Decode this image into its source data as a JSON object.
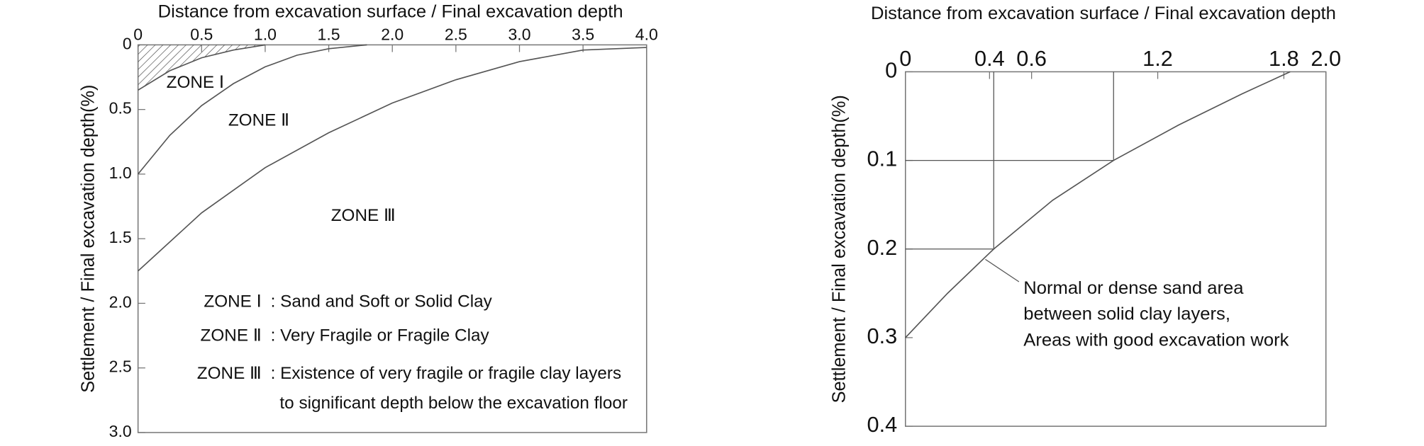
{
  "chart_data": [
    {
      "type": "line",
      "xlabel": "Distance from excavation surface / Final excavation depth",
      "ylabel": "Settlement / Final excavation depth(%)",
      "x_axis_position": "top",
      "y_inverted": true,
      "xlim": [
        0,
        4
      ],
      "xticks": [
        0,
        0.5,
        {
          "value": 1,
          "label": "1.0"
        },
        1.5,
        {
          "value": 2,
          "label": "2.0"
        },
        2.5,
        {
          "value": 3,
          "label": "3.0"
        },
        3.5,
        {
          "value": 4,
          "label": "4.0"
        }
      ],
      "ylim": [
        0,
        3
      ],
      "yticks": [
        0,
        0.5,
        {
          "value": 1,
          "label": "1.0"
        },
        1.5,
        {
          "value": 2,
          "label": "2.0"
        },
        2.5,
        {
          "value": 3,
          "label": "3.0"
        }
      ],
      "series": [
        {
          "color": "#555555",
          "hatched": true,
          "x": [
            0,
            0.25,
            0.5,
            0.75,
            1.0
          ],
          "values": [
            0.35,
            0.2,
            0.1,
            0.04,
            0
          ]
        },
        {
          "color": "#555555",
          "x": [
            0,
            0.25,
            0.5,
            0.75,
            1.0,
            1.25,
            1.5,
            1.8
          ],
          "values": [
            1.0,
            0.7,
            0.47,
            0.3,
            0.17,
            0.08,
            0.03,
            0
          ]
        },
        {
          "color": "#555555",
          "x": [
            0,
            0.5,
            1.0,
            1.5,
            2.0,
            2.5,
            3.0,
            3.5,
            4.0
          ],
          "values": [
            1.75,
            1.3,
            0.95,
            0.68,
            0.45,
            0.27,
            0.13,
            0.04,
            0.02
          ]
        }
      ],
      "zone_labels": [
        "ZONE Ⅰ",
        "ZONE Ⅱ",
        "ZONE Ⅲ"
      ],
      "legend_notes": [
        {
          "zone": "ZONE Ⅰ",
          "text": [
            ": Sand and Soft or Solid Clay"
          ]
        },
        {
          "zone": "ZONE Ⅱ",
          "text": [
            ": Very Fragile or Fragile Clay"
          ]
        },
        {
          "zone": "ZONE Ⅲ",
          "text": [
            ": Existence of very fragile or fragile clay layers",
            "to significant depth below the excavation floor"
          ]
        }
      ]
    },
    {
      "type": "line",
      "xlabel": "Distance from excavation surface / Final excavation depth",
      "ylabel": "Settlement / Final excavation depth(%)",
      "x_axis_position": "top",
      "y_inverted": true,
      "xlim": [
        0,
        2
      ],
      "xticks": [
        0,
        0.4,
        0.6,
        1.2,
        1.8,
        {
          "value": 2,
          "label": "2.0"
        }
      ],
      "ylim": [
        0,
        0.4
      ],
      "yticks": [
        0,
        0.1,
        0.2,
        0.3,
        0.4
      ],
      "series": [
        {
          "color": "#555555",
          "x": [
            0,
            0.2,
            0.42,
            0.7,
            0.99,
            1.3,
            1.6,
            1.83
          ],
          "values": [
            0.3,
            0.25,
            0.2,
            0.145,
            0.1,
            0.06,
            0.025,
            0
          ]
        }
      ],
      "reference_points": [
        {
          "x": 0.42,
          "y": 0.2
        },
        {
          "x": 0.99,
          "y": 0.1
        }
      ],
      "annotation": [
        "Normal or dense sand area",
        "between solid clay layers,",
        "Areas with good excavation work"
      ]
    }
  ]
}
